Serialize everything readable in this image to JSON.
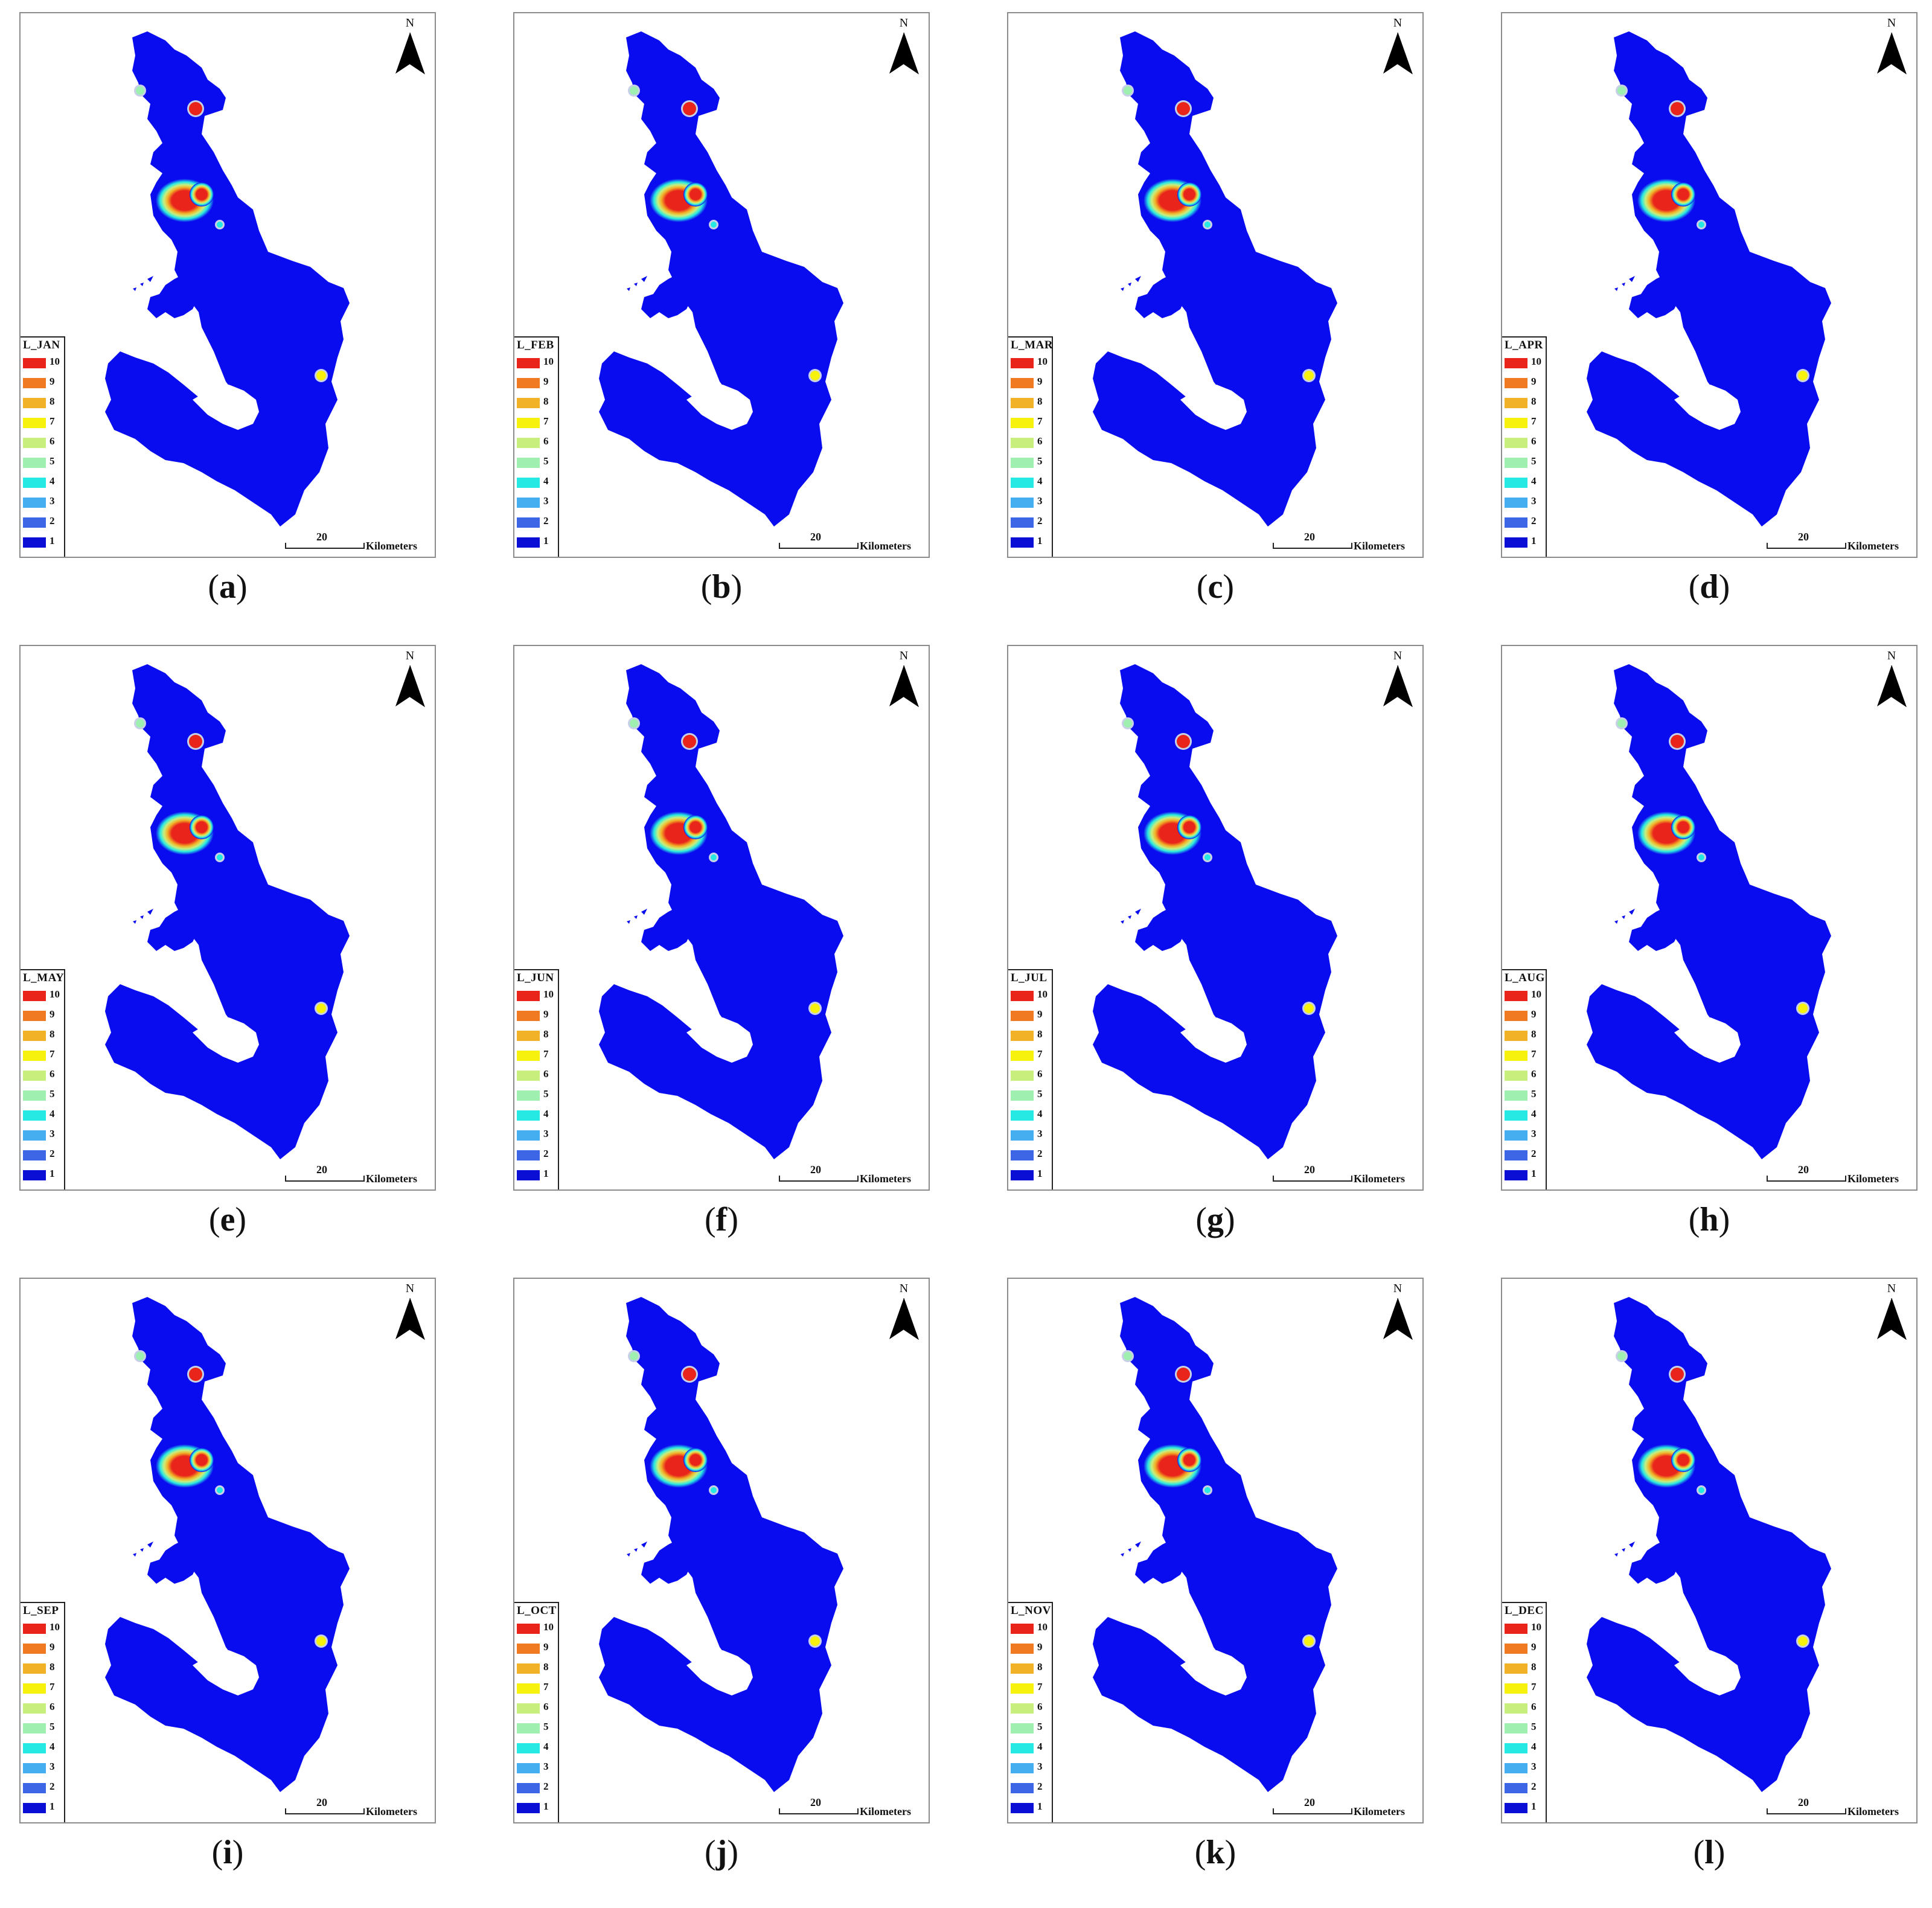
{
  "legend_classes": [
    {
      "value": "10",
      "color": "#e8241b"
    },
    {
      "value": "9",
      "color": "#f07a22"
    },
    {
      "value": "8",
      "color": "#f2b227"
    },
    {
      "value": "7",
      "color": "#f6f20d"
    },
    {
      "value": "6",
      "color": "#c8ef7e"
    },
    {
      "value": "5",
      "color": "#9ff0b0"
    },
    {
      "value": "4",
      "color": "#27e9e3"
    },
    {
      "value": "3",
      "color": "#45aef0"
    },
    {
      "value": "2",
      "color": "#3c66e6"
    },
    {
      "value": "1",
      "color": "#0b0fd6"
    }
  ],
  "region_color": "#0a0cf0",
  "scale_bar": {
    "value": "20",
    "unit": "Kilometers"
  },
  "north_label": "N",
  "panels": [
    {
      "legend_title": "L_JAN",
      "caption_letter": "a"
    },
    {
      "legend_title": "L_FEB",
      "caption_letter": "b"
    },
    {
      "legend_title": "L_MAR",
      "caption_letter": "c"
    },
    {
      "legend_title": "L_APR",
      "caption_letter": "d"
    },
    {
      "legend_title": "L_MAY",
      "caption_letter": "e"
    },
    {
      "legend_title": "L_JUN",
      "caption_letter": "f"
    },
    {
      "legend_title": "L_JUL",
      "caption_letter": "g"
    },
    {
      "legend_title": "L_AUG",
      "caption_letter": "h"
    },
    {
      "legend_title": "L_SEP",
      "caption_letter": "i"
    },
    {
      "legend_title": "L_OCT",
      "caption_letter": "j"
    },
    {
      "legend_title": "L_NOV",
      "caption_letter": "k"
    },
    {
      "legend_title": "L_DEC",
      "caption_letter": "l"
    }
  ]
}
